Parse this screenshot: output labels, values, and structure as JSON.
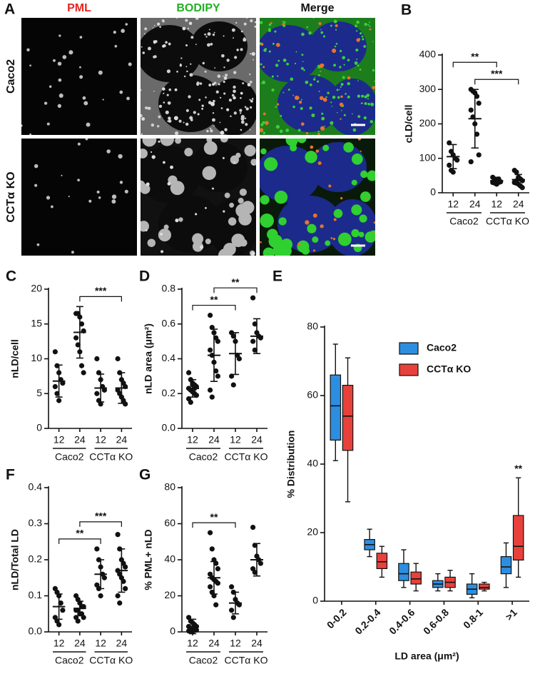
{
  "panel_a": {
    "label": "A",
    "columns": [
      "PML",
      "BODIPY",
      "Merge"
    ],
    "column_colors": [
      "#e8231f",
      "#22b022",
      "#111111"
    ],
    "rows": [
      "Caco2",
      "CCTα KO"
    ]
  },
  "chart_data": [
    {
      "type": "dot",
      "panel": "B",
      "y_label": "cLD/cell",
      "categories": [
        "12",
        "24",
        "12",
        "24"
      ],
      "group_labels": [
        "Caco2",
        "CCTα KO"
      ],
      "points": [
        [
          145,
          120,
          110,
          100,
          95,
          80,
          65,
          60
        ],
        [
          300,
          295,
          290,
          280,
          260,
          240,
          220,
          200,
          170,
          110,
          90
        ],
        [
          45,
          40,
          38,
          35,
          32,
          30,
          28,
          25,
          40
        ],
        [
          65,
          60,
          45,
          40,
          35,
          30,
          28,
          25,
          20,
          15,
          30,
          35
        ]
      ],
      "means": [
        105,
        215,
        35,
        38
      ],
      "sd": [
        35,
        85,
        10,
        15
      ],
      "ylim": [
        0,
        400
      ],
      "yticks": [
        0,
        100,
        200,
        300,
        400
      ],
      "color": "#111111",
      "significance": [
        {
          "pair": [
            1,
            3
          ],
          "label": "***"
        },
        {
          "pair": [
            0,
            2
          ],
          "label": "**"
        }
      ]
    },
    {
      "type": "dot",
      "panel": "C",
      "y_label": "nLD/cell",
      "categories": [
        "12",
        "24",
        "12",
        "24"
      ],
      "group_labels": [
        "Caco2",
        "CCTα KO"
      ],
      "points": [
        [
          11,
          9,
          8,
          7,
          6.5,
          6,
          5,
          4
        ],
        [
          16.5,
          16.5,
          16,
          15,
          14,
          13,
          12,
          11,
          9,
          8
        ],
        [
          10,
          8,
          7,
          6,
          5.5,
          5,
          4,
          3.5
        ],
        [
          10,
          8,
          7,
          6.5,
          6,
          5.5,
          5,
          4.5,
          4,
          3.5
        ]
      ],
      "means": [
        6.8,
        13.8,
        5.8,
        5.8
      ],
      "sd": [
        2.3,
        3.7,
        2,
        2.2
      ],
      "ylim": [
        0,
        20
      ],
      "yticks": [
        0,
        5,
        10,
        15,
        20
      ],
      "color": "#111111",
      "significance": [
        {
          "pair": [
            1,
            3
          ],
          "label": "***"
        }
      ]
    },
    {
      "type": "dot",
      "panel": "D",
      "y_label": "nLD area (μm²)",
      "categories": [
        "12",
        "24",
        "12",
        "24"
      ],
      "group_labels": [
        "Caco2",
        "CCTα KO"
      ],
      "points": [
        [
          0.32,
          0.28,
          0.26,
          0.25,
          0.24,
          0.23,
          0.22,
          0.21,
          0.2,
          0.19,
          0.17,
          0.15,
          0.25,
          0.23
        ],
        [
          0.65,
          0.58,
          0.55,
          0.52,
          0.5,
          0.45,
          0.42,
          0.38,
          0.33,
          0.3,
          0.22,
          0.18
        ],
        [
          0.55,
          0.53,
          0.5,
          0.42,
          0.4,
          0.3,
          0.25
        ],
        [
          0.75,
          0.6,
          0.55,
          0.53,
          0.52,
          0.5,
          0.45
        ]
      ],
      "means": [
        0.23,
        0.42,
        0.43,
        0.53
      ],
      "sd": [
        0.05,
        0.15,
        0.12,
        0.1
      ],
      "ylim": [
        0,
        0.8
      ],
      "yticks": [
        {
          "value": 0,
          "label": "0.0"
        },
        0.2,
        0.4,
        0.6,
        0.8
      ],
      "color": "#111111",
      "significance": [
        {
          "pair": [
            0,
            2
          ],
          "label": "**"
        },
        {
          "pair": [
            1,
            3
          ],
          "label": "**"
        }
      ]
    },
    {
      "type": "box",
      "panel": "E",
      "y_label": "% Distribution",
      "x_label": "LD area (μm²)",
      "categories": [
        "0-0.2",
        "0.2-0.4",
        "0.4-0.6",
        "0.6-0.8",
        "0.8-1",
        ">1"
      ],
      "series": [
        {
          "name": "Caco2",
          "color": "#2d8ee0",
          "min": [
            41,
            13,
            4,
            3,
            1,
            4
          ],
          "q1": [
            47,
            15,
            6,
            4,
            2,
            8
          ],
          "median": [
            57,
            16.5,
            8,
            5,
            3.5,
            10
          ],
          "q3": [
            66,
            18,
            11,
            6,
            5,
            13
          ],
          "max": [
            75,
            21,
            15,
            8,
            8,
            17
          ]
        },
        {
          "name": "CCTα KO",
          "color": "#e8413c",
          "min": [
            29,
            7,
            3,
            3,
            3,
            7
          ],
          "q1": [
            44,
            9.5,
            5,
            4,
            3.5,
            12
          ],
          "median": [
            54,
            11.5,
            6.5,
            5.5,
            4,
            16
          ],
          "q3": [
            63,
            14,
            8.5,
            7,
            5,
            25
          ],
          "max": [
            71,
            16,
            11,
            9,
            5.5,
            36
          ]
        }
      ],
      "ylim": [
        0,
        80
      ],
      "yticks": [
        0,
        20,
        40,
        60,
        80
      ],
      "annotations": [
        {
          "label": "**",
          "category": 5
        }
      ]
    },
    {
      "type": "dot",
      "panel": "F",
      "y_label": "nLD/Total LD",
      "categories": [
        "12",
        "24",
        "12",
        "24"
      ],
      "group_labels": [
        "Caco2",
        "CCTα KO"
      ],
      "points": [
        [
          0.12,
          0.11,
          0.1,
          0.08,
          0.06,
          0.04,
          0.03,
          0.02
        ],
        [
          0.1,
          0.09,
          0.08,
          0.07,
          0.07,
          0.06,
          0.06,
          0.05,
          0.05,
          0.04,
          0.04,
          0.03
        ],
        [
          0.23,
          0.2,
          0.18,
          0.16,
          0.15,
          0.13,
          0.12,
          0.1
        ],
        [
          0.27,
          0.23,
          0.2,
          0.19,
          0.18,
          0.17,
          0.16,
          0.15,
          0.14,
          0.12,
          0.1,
          0.08
        ]
      ],
      "means": [
        0.07,
        0.065,
        0.16,
        0.17
      ],
      "sd": [
        0.035,
        0.02,
        0.04,
        0.06
      ],
      "ylim": [
        0,
        0.4
      ],
      "yticks": [
        {
          "value": 0,
          "label": "0.0"
        },
        0.1,
        0.2,
        0.3,
        0.4
      ],
      "color": "#111111",
      "significance": [
        {
          "pair": [
            0,
            2
          ],
          "label": "**"
        },
        {
          "pair": [
            1,
            3
          ],
          "label": "***"
        }
      ]
    },
    {
      "type": "dot",
      "panel": "G",
      "y_label": "% PML+ nLD",
      "categories": [
        "12",
        "24",
        "12",
        "24"
      ],
      "group_labels": [
        "Caco2",
        "CCTα KO"
      ],
      "points": [
        [
          8,
          6,
          5,
          4,
          3,
          3,
          2,
          2,
          1,
          1,
          0.5,
          0.5,
          0
        ],
        [
          55,
          46,
          40,
          38,
          35,
          32,
          30,
          29,
          28,
          27,
          25,
          22,
          20,
          15
        ],
        [
          25,
          22,
          18,
          16,
          15,
          12,
          8
        ],
        [
          58,
          48,
          42,
          40,
          38,
          35,
          33
        ]
      ],
      "means": [
        3,
        30,
        16,
        40
      ],
      "sd": [
        4,
        9,
        6,
        9
      ],
      "ylim": [
        0,
        80
      ],
      "yticks": [
        0,
        20,
        40,
        60,
        80
      ],
      "color": "#111111",
      "significance": [
        {
          "pair": [
            0,
            2
          ],
          "label": "**"
        }
      ]
    }
  ]
}
